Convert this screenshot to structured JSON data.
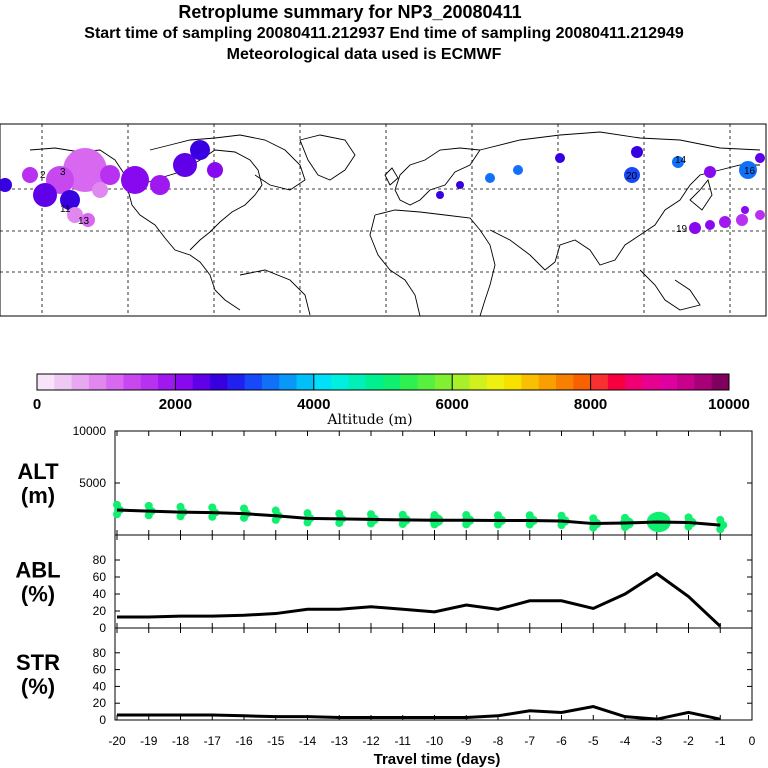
{
  "header": {
    "title": "Retroplume summary for NP3_20080411",
    "sampling": "Start time of sampling 20080411.212937     End time of sampling 20080411.212949",
    "met": "Meteorological data used is ECMWF"
  },
  "colorbar": {
    "title": "Altitude (m)",
    "ticks": [
      "0",
      "2000",
      "4000",
      "6000",
      "8000",
      "10000"
    ],
    "colors": [
      "#f8e4f8",
      "#f0c8f4",
      "#e8a8f0",
      "#e088f0",
      "#d868f0",
      "#c848f0",
      "#b830f0",
      "#a018f0",
      "#8808f0",
      "#6000e8",
      "#3800e0",
      "#2020f0",
      "#1848f8",
      "#1070f8",
      "#0898f8",
      "#00c0f8",
      "#00e0f8",
      "#00f0e0",
      "#00f0b8",
      "#00f090",
      "#10f070",
      "#30f050",
      "#58f040",
      "#80f030",
      "#a8f028",
      "#d0f020",
      "#f0f010",
      "#f8e000",
      "#f8c000",
      "#f8a000",
      "#f88000",
      "#f86000",
      "#f83030",
      "#f80040",
      "#f00070",
      "#e80090",
      "#e000a0",
      "#c8008c",
      "#a80078",
      "#800060"
    ]
  },
  "map": {
    "labels": [
      "20",
      "14",
      "16",
      "19",
      "2",
      "3",
      "11",
      "13"
    ]
  },
  "chart_data": [
    {
      "type": "line",
      "panel": "ALT",
      "ylabel": "ALT\n(m)",
      "ylabel_line1": "ALT",
      "ylabel_line2": "(m)",
      "ylim": [
        0,
        10000
      ],
      "yticks": [
        "10000",
        "5000"
      ],
      "x": [
        -20,
        -19,
        -18,
        -17,
        -16,
        -15,
        -14,
        -13,
        -12,
        -11,
        -10,
        -9,
        -8,
        -7,
        -6,
        -5,
        -4,
        -3,
        -2,
        -1
      ],
      "mean": [
        2400,
        2300,
        2200,
        2150,
        2050,
        1850,
        1600,
        1550,
        1500,
        1450,
        1420,
        1420,
        1400,
        1400,
        1350,
        1100,
        1150,
        1250,
        1200,
        950
      ],
      "point_sizes": [
        5,
        5,
        5,
        5,
        5,
        5,
        5,
        5,
        6,
        6,
        7,
        6,
        6,
        6,
        6,
        6,
        7,
        12,
        6,
        5
      ]
    },
    {
      "type": "line",
      "panel": "ABL",
      "ylabel_line1": "ABL",
      "ylabel_line2": "(%)",
      "ylim": [
        0,
        100
      ],
      "yticks": [
        "80",
        "60",
        "40",
        "20",
        "0"
      ],
      "x": [
        -20,
        -19,
        -18,
        -17,
        -16,
        -15,
        -14,
        -13,
        -12,
        -11,
        -10,
        -9,
        -8,
        -7,
        -6,
        -5,
        -4,
        -3,
        -2,
        -1
      ],
      "values": [
        13,
        13,
        14,
        14,
        15,
        17,
        22,
        22,
        25,
        22,
        19,
        27,
        22,
        32,
        32,
        23,
        40,
        64,
        37,
        2
      ]
    },
    {
      "type": "line",
      "panel": "STR",
      "ylabel_line1": "STR",
      "ylabel_line2": "(%)",
      "ylim": [
        0,
        100
      ],
      "yticks": [
        "80",
        "60",
        "40",
        "20",
        "0"
      ],
      "x": [
        -20,
        -19,
        -18,
        -17,
        -16,
        -15,
        -14,
        -13,
        -12,
        -11,
        -10,
        -9,
        -8,
        -7,
        -6,
        -5,
        -4,
        -3,
        -2,
        -1
      ],
      "values": [
        6,
        6,
        6,
        6,
        5,
        4,
        4,
        3,
        3,
        3,
        3,
        3,
        5,
        11,
        9,
        16,
        4,
        1,
        9,
        1
      ]
    }
  ],
  "xaxis": {
    "label": "Travel time (days)",
    "ticks": [
      "-20",
      "-19",
      "-18",
      "-17",
      "-16",
      "-15",
      "-14",
      "-13",
      "-12",
      "-11",
      "-10",
      "-9",
      "-8",
      "-7",
      "-6",
      "-5",
      "-4",
      "-3",
      "-2",
      "-1",
      "0"
    ]
  }
}
